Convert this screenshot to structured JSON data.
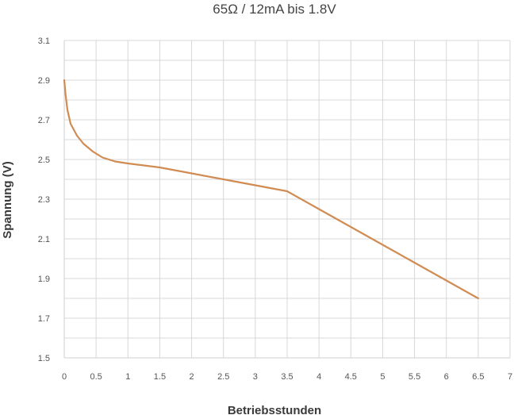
{
  "chart_data": {
    "type": "line",
    "title": "65Ω / 12mA bis 1.8V",
    "xlabel": "Betriebsstunden",
    "ylabel": "Spannung (V)",
    "xlim": [
      0,
      7
    ],
    "ylim": [
      1.5,
      3.1
    ],
    "x_ticks": [
      "0",
      "0.5",
      "1",
      "1.5",
      "2",
      "2.5",
      "3",
      "3.5",
      "4",
      "4.5",
      "5",
      "5.5",
      "6",
      "6.5",
      "7"
    ],
    "y_ticks": [
      "3.1",
      "2.9",
      "2.7",
      "2.5",
      "2.3",
      "2.1",
      "1.9",
      "1.7",
      "1.5"
    ],
    "grid": true,
    "colors": {
      "line": "#d08c53",
      "grid": "#d8d8d8",
      "axis": "#cfcfcf"
    },
    "series": [
      {
        "x": [
          0,
          0.02,
          0.05,
          0.1,
          0.2,
          0.3,
          0.45,
          0.6,
          0.8,
          1.0,
          1.25,
          1.5,
          2.0,
          2.5,
          3.0,
          3.5,
          4.0,
          4.5,
          5.0,
          5.5,
          6.0,
          6.5
        ],
        "y": [
          2.9,
          2.83,
          2.75,
          2.68,
          2.62,
          2.58,
          2.54,
          2.51,
          2.49,
          2.48,
          2.47,
          2.46,
          2.43,
          2.4,
          2.37,
          2.34,
          2.25,
          2.16,
          2.07,
          1.98,
          1.89,
          1.8
        ]
      }
    ]
  }
}
